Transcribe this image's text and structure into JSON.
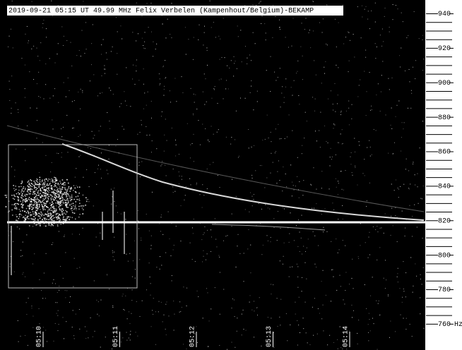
{
  "chart_data": {
    "type": "spectrogram",
    "title": "2019-09-21 05:15 UT 49.99 MHz Felix Verbelen (Kampenhout/Belgium)-BEKAMP",
    "categories": [
      "05:10",
      "05:11",
      "05:12",
      "05:13",
      "05:14"
    ],
    "ylim": [
      745,
      948
    ],
    "yticks": [
      760,
      780,
      800,
      820,
      840,
      860,
      880,
      900,
      920,
      940
    ],
    "ylabel": "Hz"
  }
}
